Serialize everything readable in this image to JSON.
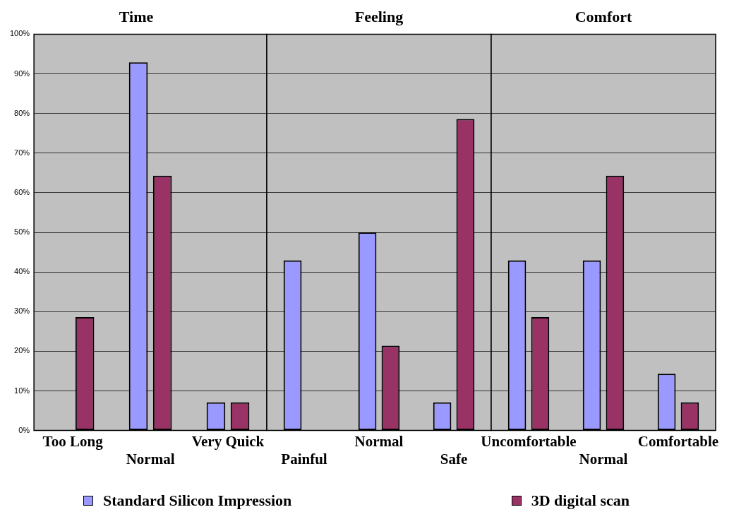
{
  "chart_data": [
    {
      "type": "bar",
      "title": "Time",
      "categories": [
        "Too Long",
        "Normal",
        "Very Quick"
      ],
      "series": [
        {
          "name": "Standard Silicon Impression",
          "color": "#9999ff",
          "values": [
            0,
            92.9,
            7.1
          ]
        },
        {
          "name": "3D digital scan",
          "color": "#993366",
          "values": [
            28.6,
            64.3,
            7.1
          ]
        }
      ],
      "ylim": [
        0,
        100
      ],
      "yticks": [
        {
          "value": 0,
          "label": "0%"
        },
        {
          "value": 10,
          "label": "10%"
        },
        {
          "value": 20,
          "label": "20%"
        },
        {
          "value": 30,
          "label": "30%"
        },
        {
          "value": 40,
          "label": "40%"
        },
        {
          "value": 50,
          "label": "50%"
        },
        {
          "value": 60,
          "label": "60%"
        },
        {
          "value": 70,
          "label": "70%"
        },
        {
          "value": 80,
          "label": "80%"
        },
        {
          "value": 90,
          "label": "90%"
        },
        {
          "value": 100,
          "label": "100%"
        }
      ],
      "grid": "y",
      "legend": "bottom"
    },
    {
      "type": "bar",
      "title": "Feeling",
      "categories": [
        "Painful",
        "Normal",
        "Safe"
      ],
      "series": [
        {
          "color": "#9999ff",
          "values": [
            42.9,
            50,
            7.1
          ]
        },
        {
          "color": "#993366",
          "values": [
            0,
            21.4,
            78.6
          ]
        }
      ],
      "ylim": [
        0,
        100
      ],
      "yticks": [
        0,
        10,
        20,
        30,
        40,
        50,
        60,
        70,
        80,
        90,
        100
      ],
      "grid": "y",
      "tick_labels": "x"
    },
    {
      "type": "bar",
      "title": "Comfort",
      "categories": [
        "Uncomfortable",
        "Normal",
        "Comfortable"
      ],
      "series": [
        {
          "color": "#9999ff",
          "values": [
            42.9,
            42.9,
            14.3
          ]
        },
        {
          "color": "#993366",
          "values": [
            28.6,
            64.3,
            7.1
          ]
        }
      ],
      "ylim": [
        0,
        100
      ],
      "yticks": [
        0,
        10,
        20,
        30,
        40,
        50,
        60,
        70,
        80,
        90,
        100
      ],
      "grid": "y",
      "tick_labels": "x"
    }
  ]
}
